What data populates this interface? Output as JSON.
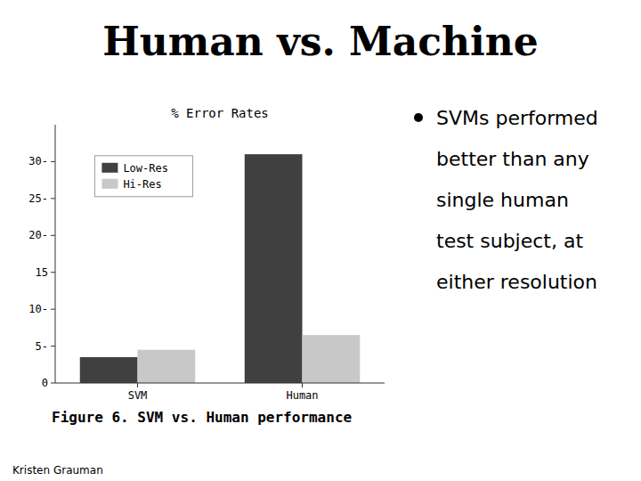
{
  "chart_data": {
    "type": "bar",
    "title": "Human vs. Machine",
    "subtitle": "% Error Rates",
    "categories": [
      "SVM",
      "Human"
    ],
    "series": [
      {
        "name": "Low-Res",
        "color": "#404040",
        "values": [
          3.5,
          31.0
        ]
      },
      {
        "name": "Hi-Res",
        "color": "#c8c8c8",
        "values": [
          4.5,
          6.5
        ]
      }
    ],
    "ylim": [
      0,
      35
    ],
    "yticks": [
      0,
      {
        "value": 5,
        "label": "5-"
      },
      {
        "value": 10,
        "label": "10-"
      },
      15,
      {
        "value": 20,
        "label": "20-"
      },
      {
        "value": 25,
        "label": "25-"
      },
      {
        "value": 30,
        "label": "30-"
      }
    ],
    "legend": "upper left",
    "grid": false,
    "annotations": [
      "Figure 6. SVM vs. Human performance",
      "SVMs performed",
      "better than any",
      "single human",
      "test subject, at",
      "either resolution",
      "Kristen Grauman"
    ]
  }
}
